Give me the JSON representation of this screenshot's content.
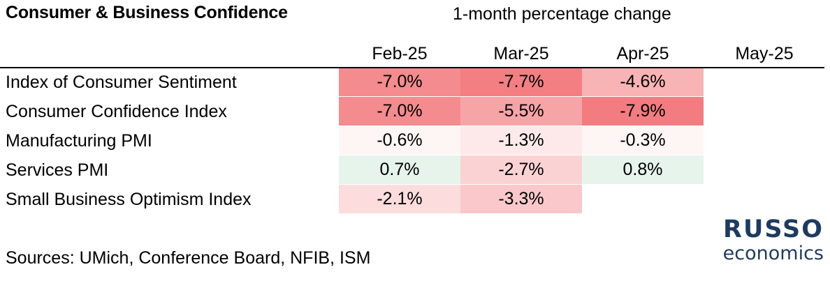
{
  "header": {
    "title": "Consumer & Business Confidence",
    "subtitle": "1-month percentage change"
  },
  "footer": {
    "sources": "Sources: UMich, Conference Board, NFIB, ISM"
  },
  "logo": {
    "line1": "RUSSO",
    "line2": "economics",
    "color": "#1f3a5f"
  },
  "colors": {
    "negative_base": "#f37c80",
    "positive_base": "#d6ece0"
  },
  "chart_data": {
    "type": "table",
    "title": "Consumer & Business Confidence",
    "subtitle": "1-month percentage change",
    "columns": [
      "Feb-25",
      "Mar-25",
      "Apr-25",
      "May-25"
    ],
    "rows": [
      {
        "label": "Index of Consumer Sentiment",
        "values": [
          "-7.0%",
          "-7.7%",
          "-4.6%",
          ""
        ]
      },
      {
        "label": "Consumer Confidence Index",
        "values": [
          "-7.0%",
          "-5.5%",
          "-7.9%",
          ""
        ]
      },
      {
        "label": "Manufacturing PMI",
        "values": [
          "-0.6%",
          "-1.3%",
          "-0.3%",
          ""
        ]
      },
      {
        "label": "Services PMI",
        "values": [
          "0.7%",
          "-2.7%",
          "0.8%",
          ""
        ]
      },
      {
        "label": "Small Business Optimism Index",
        "values": [
          "-2.1%",
          "-3.3%",
          "",
          ""
        ]
      }
    ],
    "numeric_values": [
      [
        -7.0,
        -7.7,
        -4.6,
        null
      ],
      [
        -7.0,
        -5.5,
        -7.9,
        null
      ],
      [
        -0.6,
        -1.3,
        -0.3,
        null
      ],
      [
        0.7,
        -2.7,
        0.8,
        null
      ],
      [
        -2.1,
        -3.3,
        null,
        null
      ]
    ],
    "sources": "Sources: UMich, Conference Board, NFIB, ISM"
  }
}
